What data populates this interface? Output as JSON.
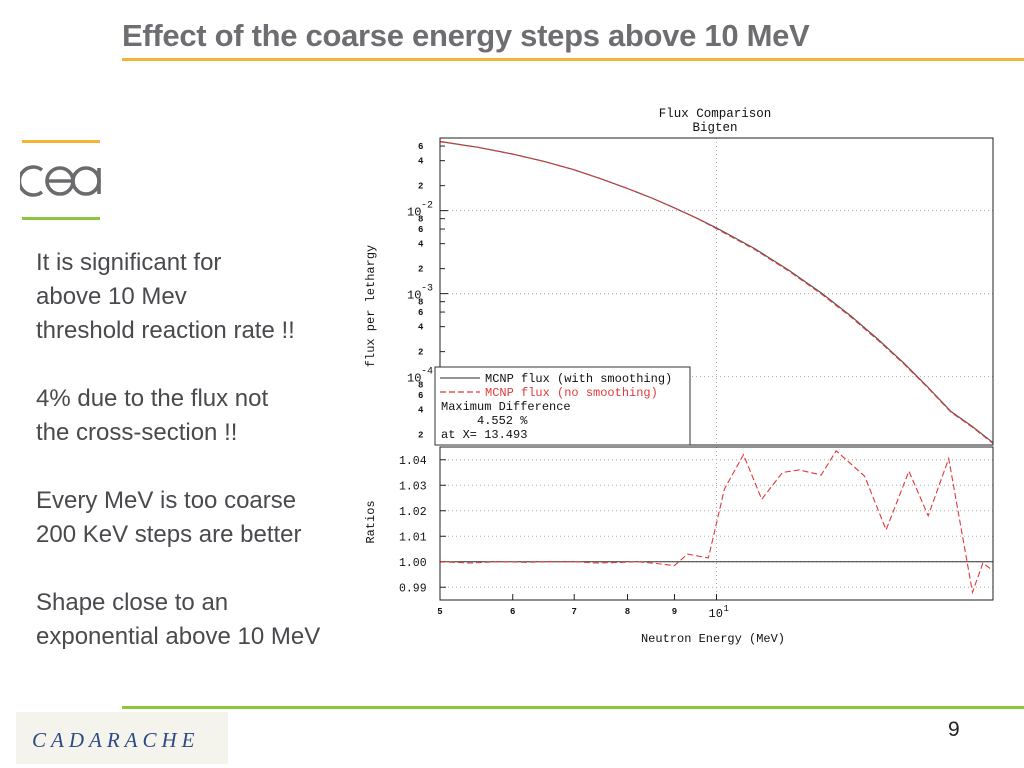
{
  "slide": {
    "title": "Effect of the coarse energy steps above 10 MeV",
    "page_number": "9",
    "footer_logo": "CADARACHE",
    "cea_logo": "cea",
    "bullets": [
      "It is significant for\nabove 10 Mev\nthreshold reaction rate !!",
      "4% due to the flux not\nthe cross-section !!",
      "Every MeV is too coarse\n200 KeV steps are better",
      "Shape close to an\nexponential above 10 MeV"
    ],
    "colors": {
      "title": "#6e6e72",
      "accent_orange": "#f5b335",
      "accent_green": "#8cc63f",
      "red_series": "#e23a3a"
    }
  },
  "chart_data": [
    {
      "type": "line",
      "title": "Flux Comparison",
      "subtitle": "Bigten",
      "ylabel": "flux per lethargy",
      "xlabel": "",
      "x_scale": "log",
      "y_scale": "log",
      "xlim": [
        5,
        20
      ],
      "ylim": [
        1.5e-05,
        0.075
      ],
      "y_major_ticks": [
        {
          "value": 0.01,
          "base": "10",
          "exp": "-2"
        },
        {
          "value": 0.001,
          "base": "10",
          "exp": "-3"
        },
        {
          "value": 0.0001,
          "base": "10",
          "exp": "-4"
        }
      ],
      "y_minor_ticks": [
        {
          "value": 0.06,
          "label": "6"
        },
        {
          "value": 0.04,
          "label": "4"
        },
        {
          "value": 0.02,
          "label": "2"
        },
        {
          "value": 0.008,
          "label": "8"
        },
        {
          "value": 0.006,
          "label": "6"
        },
        {
          "value": 0.004,
          "label": "4"
        },
        {
          "value": 0.002,
          "label": "2"
        },
        {
          "value": 0.0008,
          "label": "8"
        },
        {
          "value": 0.0006,
          "label": "6"
        },
        {
          "value": 0.0004,
          "label": "4"
        },
        {
          "value": 0.0002,
          "label": "2"
        },
        {
          "value": 8e-05,
          "label": "8"
        },
        {
          "value": 6e-05,
          "label": "6"
        },
        {
          "value": 4e-05,
          "label": "4"
        },
        {
          "value": 2e-05,
          "label": "2"
        }
      ],
      "grid": true,
      "legend": {
        "position": "bottom-left",
        "entries": [
          {
            "label": "MCNP flux (with smoothing)",
            "color": "#555555",
            "style": "solid"
          },
          {
            "label": "MCNP flux (no smoothing)",
            "color": "#e23a3a",
            "style": "dashed"
          }
        ],
        "note_lines": [
          "Maximum Difference",
          "     4.552 %",
          "at X= 13.493"
        ]
      },
      "series": [
        {
          "name": "MCNP flux (with smoothing)",
          "x": [
            5,
            5.5,
            6,
            6.5,
            7,
            7.5,
            8,
            8.5,
            9,
            9.5,
            10,
            11,
            12,
            13,
            14,
            15,
            16,
            17,
            18,
            19,
            20
          ],
          "values": [
            0.068,
            0.058,
            0.048,
            0.039,
            0.031,
            0.024,
            0.0185,
            0.0142,
            0.0108,
            0.0082,
            0.0062,
            0.0035,
            0.0019,
            0.00102,
            0.00054,
            0.00028,
            0.000145,
            7.4e-05,
            3.8e-05,
            2.5e-05,
            1.6e-05
          ]
        },
        {
          "name": "MCNP flux (no smoothing)",
          "x": [
            5,
            5.5,
            6,
            6.5,
            7,
            7.5,
            8,
            8.5,
            9,
            9.5,
            10,
            11,
            12,
            13,
            14,
            15,
            16,
            17,
            18,
            19,
            20
          ],
          "values": [
            0.0679,
            0.058,
            0.048,
            0.039,
            0.031,
            0.024,
            0.0185,
            0.0142,
            0.0108,
            0.0082,
            0.00605,
            0.00342,
            0.00186,
            0.000995,
            0.000526,
            0.000273,
            0.000142,
            7.25e-05,
            3.73e-05,
            2.45e-05,
            1.57e-05
          ]
        }
      ]
    },
    {
      "type": "line",
      "title": "",
      "ylabel": "Ratios",
      "xlabel": "Neutron Energy (MeV)",
      "x_scale": "log",
      "xlim": [
        5,
        20
      ],
      "ylim": [
        0.985,
        1.045
      ],
      "y_ticks": [
        "1.04",
        "1.03",
        "1.02",
        "1.01",
        "1.00",
        "0.99"
      ],
      "x_ticks": [
        {
          "value": 5,
          "label": "5"
        },
        {
          "value": 6,
          "label": "6"
        },
        {
          "value": 7,
          "label": "7"
        },
        {
          "value": 8,
          "label": "8"
        },
        {
          "value": 9,
          "label": "9"
        },
        {
          "value": 10,
          "label": "10",
          "exp": "1"
        }
      ],
      "reference_line": 1.0,
      "grid": true,
      "series": [
        {
          "name": "",
          "x": [
            5,
            5.4,
            5.8,
            6.2,
            6.6,
            7,
            7.4,
            7.8,
            8.2,
            8.6,
            9,
            9.3,
            9.8,
            10.2,
            10.7,
            11.2,
            11.8,
            12.3,
            13,
            13.5,
            14.5,
            15.3,
            16.2,
            17,
            17.9,
            19,
            19.5,
            20
          ],
          "values": [
            1.0,
            0.9995,
            1.0,
            0.9998,
            1.0,
            1.0,
            0.9995,
            0.9997,
            1.0,
            0.9993,
            0.9985,
            1.003,
            1.0015,
            1.0285,
            1.042,
            1.0245,
            1.035,
            1.036,
            1.034,
            1.0435,
            1.0335,
            1.0125,
            1.0355,
            1.018,
            1.0405,
            0.988,
            0.9995,
            0.9965
          ]
        }
      ]
    }
  ]
}
